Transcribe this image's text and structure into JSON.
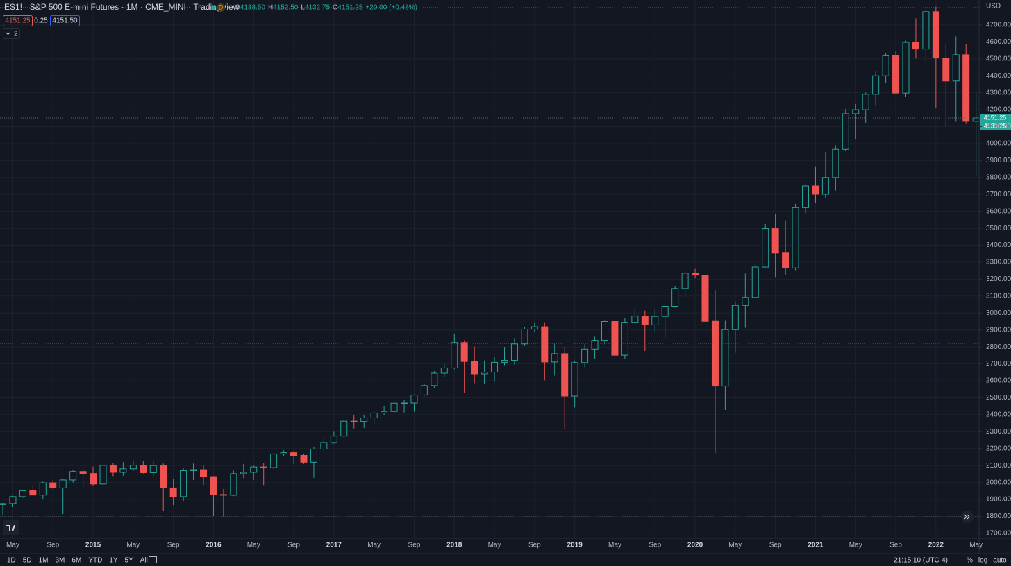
{
  "ui": {
    "title": "ES1! · S&P 500 E-mini Futures · 1M · CME_MINI · TradingView",
    "badge": "D",
    "ohlc": [
      {
        "key": "O",
        "value": "4138.50"
      },
      {
        "key": "H",
        "value": "4152.50"
      },
      {
        "key": "L",
        "value": "4132.75"
      },
      {
        "key": "C",
        "value": "4151.25"
      }
    ],
    "change": "+20.00 (+0.48%)",
    "bid": "4151.25",
    "spread": "0.25",
    "ask": "4151.50",
    "indicators": "2",
    "currency": "USD",
    "price_labels": [
      "4151.25",
      "4131.25"
    ],
    "ranges": [
      "1D",
      "5D",
      "1M",
      "3M",
      "6M",
      "YTD",
      "1Y",
      "5Y",
      "All"
    ],
    "clock": "21:15:10 (UTC-4)",
    "scale_options": [
      "%",
      "log",
      "auto"
    ]
  },
  "chart_data": {
    "type": "candlestick",
    "up_color": "#26a69a",
    "down_color": "#ef5350",
    "grid": true,
    "ylim": [
      1671,
      4847
    ],
    "yticks": [
      {
        "value": 1700,
        "label": "1700.00"
      },
      {
        "value": 1800,
        "label": "1800.00"
      },
      {
        "value": 1900,
        "label": "1900.00"
      },
      {
        "value": 2000,
        "label": "2000.00"
      },
      {
        "value": 2100,
        "label": "2100.00"
      },
      {
        "value": 2200,
        "label": "2200.00"
      },
      {
        "value": 2300,
        "label": "2300.00"
      },
      {
        "value": 2400,
        "label": "2400.00"
      },
      {
        "value": 2500,
        "label": "2500.00"
      },
      {
        "value": 2600,
        "label": "2600.00"
      },
      {
        "value": 2700,
        "label": "2700.00"
      },
      {
        "value": 2800,
        "label": "2800.00"
      },
      {
        "value": 2900,
        "label": "2900.00"
      },
      {
        "value": 3000,
        "label": "3000.00"
      },
      {
        "value": 3100,
        "label": "3100.00"
      },
      {
        "value": 3200,
        "label": "3200.00"
      },
      {
        "value": 3300,
        "label": "3300.00"
      },
      {
        "value": 3400,
        "label": "3400.00"
      },
      {
        "value": 3500,
        "label": "3500.00"
      },
      {
        "value": 3600,
        "label": "3600.00"
      },
      {
        "value": 3700,
        "label": "3700.00"
      },
      {
        "value": 3800,
        "label": "3800.00"
      },
      {
        "value": 3900,
        "label": "3900.00"
      },
      {
        "value": 4000,
        "label": "4000.00"
      },
      {
        "value": 4100,
        "label": "4100.00"
      },
      {
        "value": 4200,
        "label": "4200.00"
      },
      {
        "value": 4300,
        "label": "4300.00"
      },
      {
        "value": 4400,
        "label": "4400.00"
      },
      {
        "value": 4500,
        "label": "4500.00"
      },
      {
        "value": 4600,
        "label": "4600.00"
      },
      {
        "value": 4700,
        "label": "4700.00"
      }
    ],
    "categories": [
      null,
      "May",
      null,
      null,
      null,
      "Sep",
      null,
      null,
      null,
      "2015",
      null,
      null,
      null,
      "May",
      null,
      null,
      null,
      "Sep",
      null,
      null,
      null,
      "2016",
      null,
      null,
      null,
      "May",
      null,
      null,
      null,
      "Sep",
      null,
      null,
      null,
      "2017",
      null,
      null,
      null,
      "May",
      null,
      null,
      null,
      "Sep",
      null,
      null,
      null,
      "2018",
      null,
      null,
      null,
      "May",
      null,
      null,
      null,
      "Sep",
      null,
      null,
      null,
      "2019",
      null,
      null,
      null,
      "May",
      null,
      null,
      null,
      "Sep",
      null,
      null,
      null,
      "2020",
      null,
      null,
      null,
      "May",
      null,
      null,
      null,
      "Sep",
      null,
      null,
      null,
      "2021",
      null,
      null,
      null,
      "May",
      null,
      null,
      null,
      "Sep",
      null,
      null,
      null,
      "2022",
      null,
      null,
      null,
      "May"
    ],
    "open": [
      1870,
      1876,
      1917,
      1952,
      1926,
      1998,
      1968,
      2015,
      2065,
      2053,
      1991,
      2101,
      2060,
      2081,
      2102,
      2058,
      2100,
      1968,
      1917,
      2070,
      2076,
      2035,
      1929,
      1925,
      2052,
      2060,
      2092,
      2088,
      2168,
      2176,
      2160,
      2120,
      2197,
      2236,
      2274,
      2362,
      2360,
      2381,
      2410,
      2419,
      2468,
      2469,
      2516,
      2572,
      2645,
      2676,
      2826,
      2714,
      2641,
      2651,
      2709,
      2721,
      2818,
      2905,
      2919,
      2711,
      2760,
      2510,
      2707,
      2787,
      2839,
      2950,
      2751,
      2945,
      2982,
      2930,
      2980,
      3040,
      3145,
      3235,
      3224,
      2951,
      2569,
      2902,
      3045,
      3092,
      3271,
      3498,
      3354,
      3266,
      3622,
      3750,
      3701,
      3800,
      3966,
      4176,
      4200,
      4291,
      4400,
      4518,
      4298,
      4597,
      4558,
      4778,
      4505,
      4369,
      4524,
      4131.25
    ],
    "high": [
      1880,
      1922,
      1958,
      1985,
      2005,
      2015,
      2020,
      2075,
      2090,
      2094,
      2115,
      2117,
      2120,
      2130,
      2125,
      2130,
      2112,
      2020,
      2085,
      2112,
      2100,
      2038,
      1962,
      2070,
      2110,
      2100,
      2115,
      2175,
      2190,
      2185,
      2170,
      2210,
      2277,
      2300,
      2370,
      2400,
      2396,
      2418,
      2450,
      2484,
      2487,
      2520,
      2582,
      2657,
      2698,
      2879,
      2839,
      2803,
      2720,
      2742,
      2800,
      2850,
      2918,
      2945,
      2946,
      2820,
      2800,
      2716,
      2816,
      2860,
      2955,
      2965,
      2970,
      3029,
      3015,
      3025,
      3050,
      3157,
      3249,
      3260,
      3397,
      3136,
      2954,
      3068,
      3233,
      3285,
      3525,
      3587,
      3547,
      3644,
      3760,
      3862,
      3950,
      3990,
      4205,
      4234,
      4301,
      4429,
      4536,
      4543,
      4607,
      4739,
      4804,
      4808,
      4589,
      4633,
      4588,
      4303
    ],
    "low": [
      1808,
      1855,
      1910,
      1925,
      1900,
      1960,
      1814,
      2000,
      1970,
      1980,
      1980,
      2038,
      2040,
      2069,
      2053,
      2040,
      1831,
      1867,
      1890,
      2015,
      1985,
      1802,
      1800,
      1920,
      2025,
      2015,
      1985,
      2080,
      2155,
      2110,
      2110,
      2028,
      2185,
      2228,
      2270,
      2319,
      2322,
      2345,
      2400,
      2404,
      2413,
      2417,
      2510,
      2555,
      2619,
      2668,
      2529,
      2586,
      2584,
      2595,
      2692,
      2695,
      2805,
      2886,
      2603,
      2631,
      2317,
      2443,
      2681,
      2730,
      2815,
      2735,
      2729,
      2943,
      2776,
      2891,
      2856,
      3032,
      3088,
      3205,
      2853,
      2174,
      2428,
      2765,
      2913,
      3087,
      3270,
      3209,
      3226,
      3253,
      3590,
      3652,
      3680,
      3723,
      3958,
      4028,
      4123,
      4222,
      4360,
      4294,
      4274,
      4502,
      4484,
      4212,
      4101,
      4129,
      4116,
      3805
    ],
    "close": [
      1876,
      1917,
      1952,
      1926,
      1998,
      1968,
      2015,
      2065,
      2053,
      1991,
      2101,
      2060,
      2081,
      2102,
      2058,
      2100,
      1968,
      1917,
      2070,
      2076,
      2035,
      1929,
      1925,
      2052,
      2060,
      2092,
      2088,
      2168,
      2176,
      2160,
      2120,
      2197,
      2236,
      2274,
      2362,
      2360,
      2381,
      2410,
      2419,
      2468,
      2469,
      2516,
      2572,
      2645,
      2676,
      2826,
      2714,
      2641,
      2651,
      2709,
      2721,
      2818,
      2905,
      2919,
      2711,
      2760,
      2510,
      2707,
      2787,
      2839,
      2950,
      2751,
      2945,
      2982,
      2930,
      2980,
      3040,
      3145,
      3235,
      3224,
      2951,
      2569,
      2902,
      3045,
      3092,
      3271,
      3498,
      3354,
      3266,
      3622,
      3750,
      3701,
      3800,
      3966,
      4176,
      4200,
      4291,
      4400,
      4518,
      4298,
      4597,
      4558,
      4778,
      4505,
      4369,
      4524,
      4131.25,
      4151.25
    ]
  }
}
